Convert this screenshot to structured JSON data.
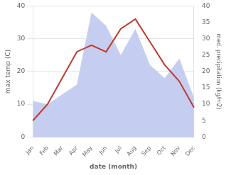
{
  "chart_data": {
    "type": "line",
    "categories": [
      "Jan",
      "Feb",
      "Mar",
      "Apr",
      "May",
      "Jun",
      "Jul",
      "Aug",
      "Sep",
      "Oct",
      "Nov",
      "Dec"
    ],
    "series": [
      {
        "type": "area",
        "color": "#c5cef0",
        "axis": "y2",
        "values": [
          11,
          10,
          13,
          16,
          38,
          34,
          25,
          33,
          22,
          18,
          24,
          12
        ]
      },
      {
        "type": "line",
        "color": "#c0392b",
        "values": [
          5,
          10,
          18,
          26,
          28,
          26,
          33,
          36,
          29,
          22,
          17,
          9
        ]
      }
    ],
    "xlabel": "date (month)",
    "ylabel": "max temp (C)",
    "y2label": "med. precipitation (kg/m2)",
    "ylim": [
      0,
      40
    ],
    "yticks": [
      0,
      10,
      20,
      30,
      40
    ],
    "y2lim": [
      0,
      40
    ],
    "y2ticks": [
      0,
      5,
      10,
      15,
      20,
      25,
      30,
      35,
      40
    ],
    "grid": true
  }
}
